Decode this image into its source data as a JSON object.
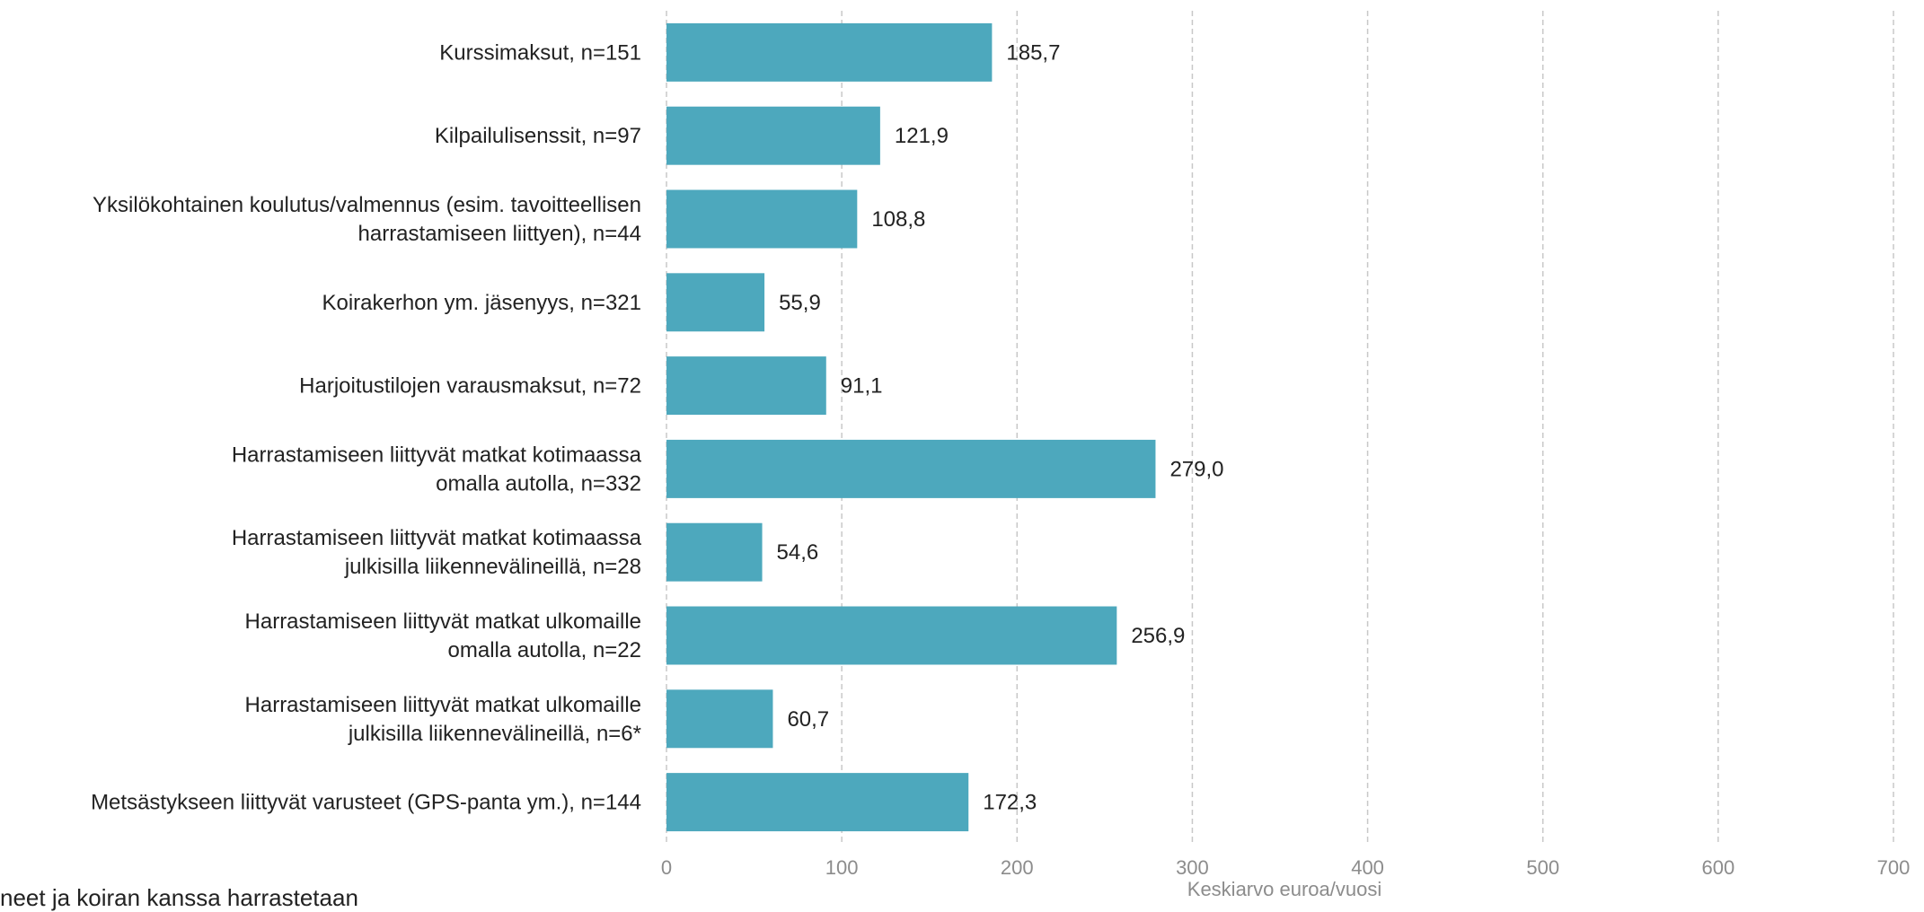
{
  "chart_data": {
    "type": "bar",
    "orientation": "horizontal",
    "categories": [
      [
        "Kurssimaksut, n=151"
      ],
      [
        "Kilpailulisenssit, n=97"
      ],
      [
        "Yksilökohtainen koulutus/valmennus (esim. tavoitteellisen",
        "harrastamiseen liittyen), n=44"
      ],
      [
        "Koirakerhon ym. jäsenyys, n=321"
      ],
      [
        "Harjoitustilojen varausmaksut, n=72"
      ],
      [
        "Harrastamiseen liittyvät matkat kotimaassa",
        "omalla autolla, n=332"
      ],
      [
        "Harrastamiseen liittyvät matkat kotimaassa",
        "julkisilla liikennevälineillä, n=28"
      ],
      [
        "Harrastamiseen liittyvät matkat ulkomaille",
        "omalla autolla, n=22"
      ],
      [
        "Harrastamiseen liittyvät matkat ulkomaille",
        "julkisilla liikennevälineillä, n=6*"
      ],
      [
        "Metsästykseen liittyvät varusteet (GPS-panta ym.), n=144"
      ]
    ],
    "values": [
      185.7,
      121.9,
      108.8,
      55.9,
      91.1,
      279.0,
      54.6,
      256.9,
      60.7,
      172.3
    ],
    "value_labels": [
      "185,7",
      "121,9",
      "108,8",
      "55,9",
      "91,1",
      "279,0",
      "54,6",
      "256,9",
      "60,7",
      "172,3"
    ],
    "xticks": [
      0,
      100,
      200,
      300,
      400,
      500,
      600,
      700
    ],
    "xtick_labels": [
      "0",
      "100",
      "200",
      "300",
      "400",
      "500",
      "600",
      "700"
    ],
    "xlim": [
      0,
      700
    ],
    "xlabel": "Keskiarvo euroa/vuosi",
    "grid": "vertical dashed",
    "bar_color": "#4da8bd",
    "grid_color": "#c8c8c8"
  },
  "footer_fragment": "neet ja koiran kanssa harrastetaan"
}
